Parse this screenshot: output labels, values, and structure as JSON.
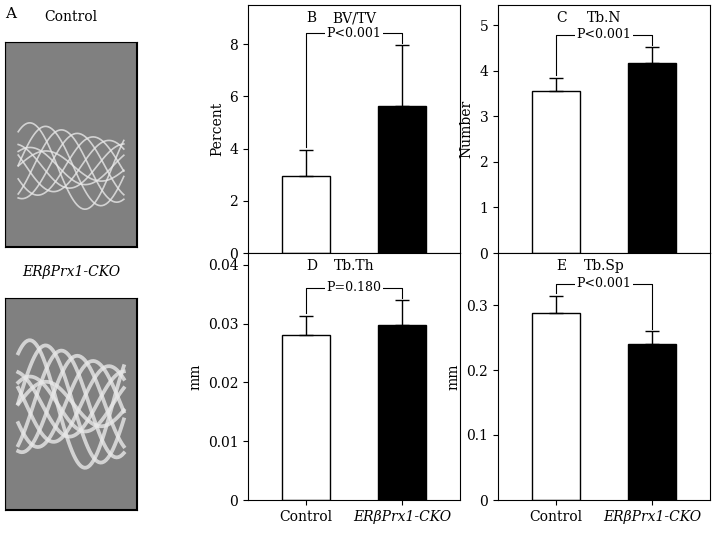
{
  "panel_a": {
    "panel": "A",
    "images": [
      "Control",
      "ERβPrx1-CKO"
    ]
  },
  "chart_data": [
    {
      "type": "bar",
      "panel": "B",
      "title": "BV/TV",
      "y_label": "Percent",
      "categories": [
        "Control",
        "ERβPrx1-CKO"
      ],
      "values": [
        2.95,
        5.65
      ],
      "errors": [
        1.0,
        2.3
      ],
      "colors": [
        "#ffffff",
        "#000000"
      ],
      "ylim": [
        0,
        9.5
      ],
      "yticks": [
        0,
        2,
        4,
        6,
        8
      ],
      "p_value": "P<0.001",
      "tick_labels": "y"
    },
    {
      "type": "bar",
      "panel": "C",
      "title": "Tb.N",
      "y_label": "Number",
      "categories": [
        "Control",
        "ERβPrx1-CKO"
      ],
      "values": [
        3.55,
        4.17
      ],
      "errors": [
        0.3,
        0.35
      ],
      "colors": [
        "#ffffff",
        "#000000"
      ],
      "ylim": [
        0,
        5.45
      ],
      "yticks": [
        0,
        1,
        2,
        3,
        4,
        5
      ],
      "p_value": "P<0.001",
      "tick_labels": "y"
    },
    {
      "type": "bar",
      "panel": "D",
      "title": "Tb.Th",
      "y_label": "mm",
      "categories": [
        "Control",
        "ERβPrx1-CKO"
      ],
      "values": [
        0.028,
        0.0298
      ],
      "errors": [
        0.0033,
        0.0042
      ],
      "colors": [
        "#ffffff",
        "#000000"
      ],
      "ylim": [
        0,
        0.042
      ],
      "yticks": [
        0,
        0.01,
        0.02,
        0.03,
        0.04
      ],
      "p_value": "P=0.180"
    },
    {
      "type": "bar",
      "panel": "E",
      "title": "Tb.Sp",
      "y_label": "mm",
      "categories": [
        "Control",
        "ERβPrx1-CKO"
      ],
      "values": [
        0.287,
        0.24
      ],
      "errors": [
        0.027,
        0.02
      ],
      "colors": [
        "#ffffff",
        "#000000"
      ],
      "ylim": [
        0,
        0.38
      ],
      "yticks": [
        0,
        0.1,
        0.2,
        0.3
      ],
      "p_value": "P<0.001"
    }
  ]
}
